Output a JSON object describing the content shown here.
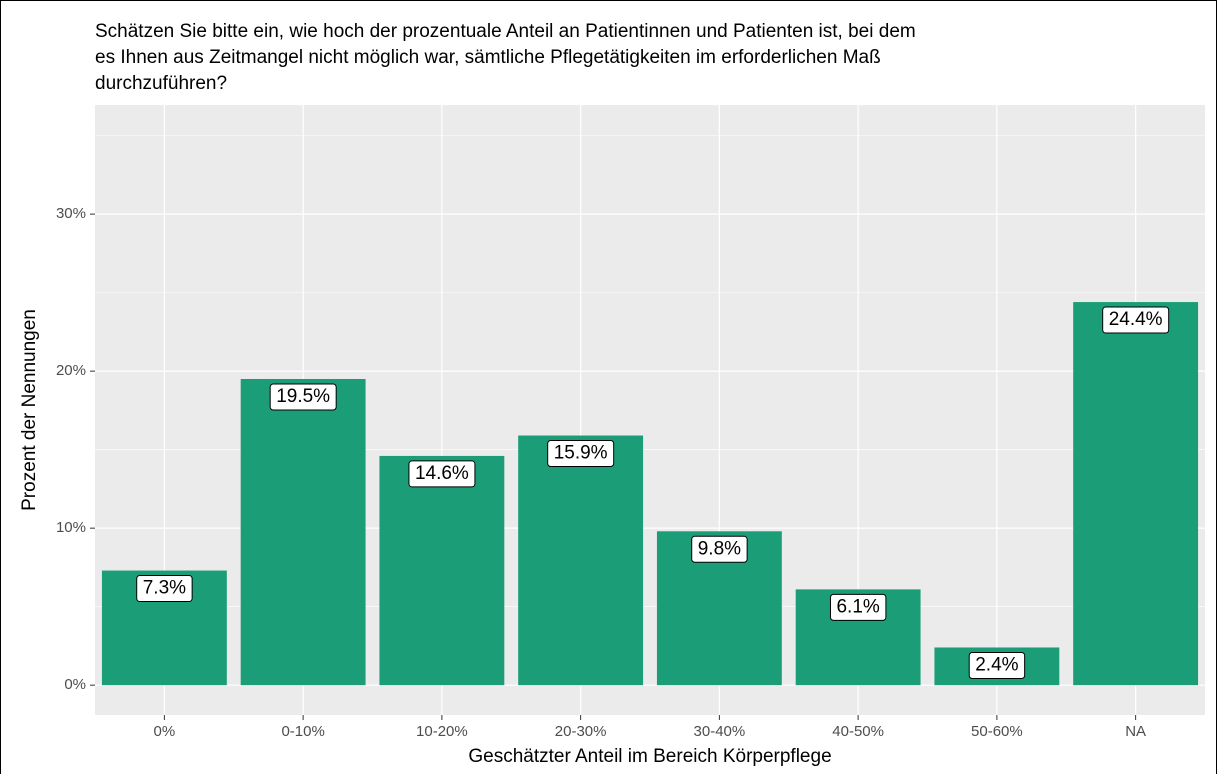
{
  "chart_data": {
    "type": "bar",
    "title": [
      "Schätzen Sie bitte ein, wie hoch der prozentuale Anteil an Patientinnen und Patienten ist, bei dem",
      "es Ihnen aus Zeitmangel nicht möglich war, sämtliche Pflegetätigkeiten im erforderlichen Maß",
      "durchzuführen?"
    ],
    "x_label": "Geschätzter Anteil im Bereich Körperpflege",
    "y_label": "Prozent der Nennungen",
    "categories": [
      "0%",
      "0-10%",
      "10-20%",
      "20-30%",
      "30-40%",
      "40-50%",
      "50-60%",
      "NA"
    ],
    "values": [
      7.3,
      19.5,
      14.6,
      15.9,
      9.8,
      6.1,
      2.4,
      24.4
    ],
    "value_labels": [
      "7.3%",
      "19.5%",
      "14.6%",
      "15.9%",
      "9.8%",
      "6.1%",
      "2.4%",
      "24.4%"
    ],
    "color": "#1b9e77",
    "ylim": [
      -1.9,
      36.95
    ],
    "yticks": [
      {
        "value": 0,
        "label": "0%"
      },
      {
        "value": 10,
        "label": "10%"
      },
      {
        "value": 20,
        "label": "20%"
      },
      {
        "value": 30,
        "label": "30%"
      }
    ],
    "minor_yticks": [
      5,
      15,
      25,
      35
    ],
    "grid": true
  }
}
